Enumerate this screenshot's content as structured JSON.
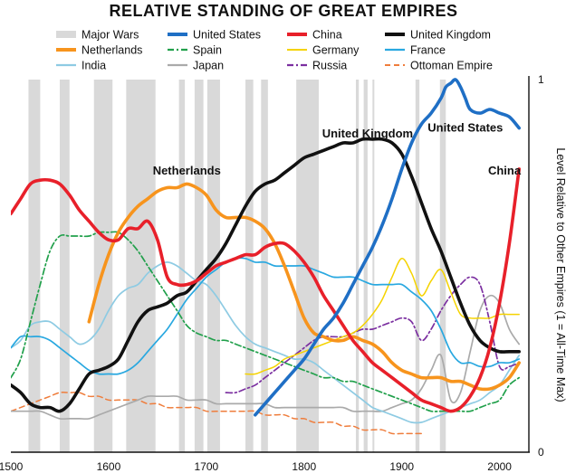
{
  "chart_data": {
    "type": "line",
    "title": "RELATIVE STANDING OF GREAT EMPIRES",
    "ylabel": "Level Relative to Other Empires (1 = All-Time Max)",
    "xlim": [
      1500,
      2030
    ],
    "ylim": [
      0,
      1
    ],
    "x_ticks": [
      "1500",
      "1600",
      "1700",
      "1800",
      "1900",
      "2000"
    ],
    "y_ticks": [
      "0",
      "1"
    ],
    "legend_placement": "top",
    "legend": [
      "Major Wars",
      "United States",
      "China",
      "United Kingdom",
      "Netherlands",
      "Spain",
      "Germany",
      "France",
      "India",
      "Japan",
      "Russia",
      "Ottoman Empire"
    ],
    "major_wars_label": "Major Wars",
    "major_wars_color": "#d9d9d9",
    "major_wars": [
      [
        1518,
        1530
      ],
      [
        1550,
        1560
      ],
      [
        1585,
        1604
      ],
      [
        1618,
        1648
      ],
      [
        1672,
        1678
      ],
      [
        1688,
        1697
      ],
      [
        1701,
        1714
      ],
      [
        1740,
        1748
      ],
      [
        1756,
        1763
      ],
      [
        1792,
        1815
      ],
      [
        1853,
        1856
      ],
      [
        1861,
        1865
      ],
      [
        1870,
        1871
      ],
      [
        1914,
        1918
      ],
      [
        1939,
        1945
      ]
    ],
    "annotations": [
      {
        "text": "Netherlands",
        "x": 1680,
        "y": 0.745
      },
      {
        "text": "United Kingdom",
        "x": 1865,
        "y": 0.845
      },
      {
        "text": "United States",
        "x": 1965,
        "y": 0.86
      },
      {
        "text": "China",
        "x": 2005,
        "y": 0.745
      }
    ],
    "series": [
      {
        "name": "United States",
        "color": "#1f6fc5",
        "width": 3.6,
        "dash": "",
        "x": [
          1750,
          1760,
          1770,
          1780,
          1790,
          1800,
          1810,
          1820,
          1830,
          1840,
          1850,
          1860,
          1870,
          1880,
          1890,
          1900,
          1910,
          1920,
          1930,
          1940,
          1945,
          1950,
          1955,
          1960,
          1965,
          1970,
          1980,
          1990,
          2000,
          2010,
          2020
        ],
        "y": [
          0.1,
          0.13,
          0.16,
          0.19,
          0.22,
          0.25,
          0.29,
          0.33,
          0.36,
          0.4,
          0.45,
          0.5,
          0.55,
          0.61,
          0.68,
          0.76,
          0.83,
          0.88,
          0.91,
          0.95,
          0.98,
          0.99,
          1.0,
          0.98,
          0.95,
          0.92,
          0.91,
          0.92,
          0.91,
          0.9,
          0.87
        ]
      },
      {
        "name": "China",
        "color": "#e8202a",
        "width": 3.6,
        "dash": "",
        "x": [
          1500,
          1510,
          1520,
          1530,
          1540,
          1550,
          1560,
          1570,
          1580,
          1590,
          1600,
          1610,
          1620,
          1630,
          1640,
          1650,
          1660,
          1670,
          1680,
          1690,
          1700,
          1710,
          1720,
          1730,
          1740,
          1750,
          1760,
          1770,
          1780,
          1790,
          1800,
          1810,
          1820,
          1830,
          1840,
          1850,
          1860,
          1870,
          1880,
          1890,
          1900,
          1910,
          1920,
          1930,
          1940,
          1950,
          1960,
          1970,
          1980,
          1990,
          2000,
          2010,
          2020
        ],
        "y": [
          0.64,
          0.68,
          0.72,
          0.73,
          0.73,
          0.72,
          0.69,
          0.65,
          0.62,
          0.59,
          0.57,
          0.57,
          0.6,
          0.6,
          0.62,
          0.57,
          0.47,
          0.45,
          0.45,
          0.46,
          0.48,
          0.5,
          0.51,
          0.52,
          0.53,
          0.53,
          0.55,
          0.56,
          0.56,
          0.54,
          0.51,
          0.47,
          0.42,
          0.38,
          0.34,
          0.3,
          0.27,
          0.24,
          0.22,
          0.2,
          0.18,
          0.16,
          0.14,
          0.13,
          0.12,
          0.11,
          0.12,
          0.15,
          0.2,
          0.28,
          0.4,
          0.56,
          0.76
        ]
      },
      {
        "name": "United Kingdom",
        "color": "#111111",
        "width": 3.6,
        "dash": "",
        "x": [
          1500,
          1510,
          1520,
          1530,
          1540,
          1550,
          1560,
          1570,
          1580,
          1590,
          1600,
          1610,
          1620,
          1630,
          1640,
          1650,
          1660,
          1670,
          1680,
          1690,
          1700,
          1710,
          1720,
          1730,
          1740,
          1750,
          1760,
          1770,
          1780,
          1790,
          1800,
          1810,
          1820,
          1830,
          1840,
          1850,
          1860,
          1870,
          1880,
          1890,
          1900,
          1910,
          1920,
          1930,
          1940,
          1950,
          1960,
          1970,
          1980,
          1990,
          2000,
          2010,
          2020
        ],
        "y": [
          0.18,
          0.16,
          0.13,
          0.12,
          0.12,
          0.11,
          0.13,
          0.17,
          0.21,
          0.22,
          0.23,
          0.25,
          0.3,
          0.35,
          0.38,
          0.39,
          0.4,
          0.42,
          0.43,
          0.46,
          0.49,
          0.52,
          0.56,
          0.61,
          0.66,
          0.7,
          0.72,
          0.73,
          0.75,
          0.77,
          0.79,
          0.8,
          0.81,
          0.82,
          0.83,
          0.83,
          0.84,
          0.84,
          0.84,
          0.83,
          0.8,
          0.74,
          0.67,
          0.6,
          0.54,
          0.47,
          0.4,
          0.34,
          0.3,
          0.28,
          0.27,
          0.27,
          0.27
        ]
      },
      {
        "name": "Netherlands",
        "color": "#f7941d",
        "width": 3.6,
        "dash": "",
        "x": [
          1580,
          1590,
          1600,
          1610,
          1620,
          1630,
          1640,
          1650,
          1660,
          1670,
          1680,
          1690,
          1700,
          1710,
          1720,
          1730,
          1740,
          1750,
          1760,
          1770,
          1780,
          1790,
          1800,
          1810,
          1820,
          1830,
          1840,
          1850,
          1860,
          1870,
          1880,
          1890,
          1900,
          1910,
          1920,
          1930,
          1940,
          1950,
          1960,
          1970,
          1980,
          1990,
          2000,
          2010,
          2020
        ],
        "y": [
          0.35,
          0.45,
          0.53,
          0.59,
          0.63,
          0.66,
          0.68,
          0.7,
          0.71,
          0.71,
          0.72,
          0.71,
          0.69,
          0.65,
          0.63,
          0.63,
          0.63,
          0.62,
          0.6,
          0.56,
          0.5,
          0.43,
          0.36,
          0.32,
          0.31,
          0.3,
          0.3,
          0.31,
          0.3,
          0.29,
          0.27,
          0.24,
          0.22,
          0.21,
          0.2,
          0.2,
          0.2,
          0.19,
          0.19,
          0.18,
          0.17,
          0.17,
          0.18,
          0.2,
          0.24
        ]
      },
      {
        "name": "Spain",
        "color": "#21a04b",
        "width": 1.7,
        "dash": "7,3,2,3",
        "x": [
          1500,
          1510,
          1520,
          1530,
          1540,
          1550,
          1560,
          1570,
          1580,
          1590,
          1600,
          1610,
          1620,
          1630,
          1640,
          1650,
          1660,
          1670,
          1680,
          1690,
          1700,
          1710,
          1720,
          1730,
          1740,
          1750,
          1760,
          1770,
          1780,
          1790,
          1800,
          1810,
          1820,
          1830,
          1840,
          1850,
          1860,
          1870,
          1880,
          1890,
          1900,
          1910,
          1920,
          1930,
          1940,
          1950,
          1960,
          1970,
          1980,
          1990,
          2000,
          2010,
          2020
        ],
        "y": [
          0.2,
          0.25,
          0.35,
          0.45,
          0.54,
          0.58,
          0.58,
          0.58,
          0.58,
          0.59,
          0.59,
          0.59,
          0.57,
          0.54,
          0.5,
          0.46,
          0.42,
          0.38,
          0.34,
          0.32,
          0.31,
          0.3,
          0.3,
          0.29,
          0.28,
          0.27,
          0.26,
          0.25,
          0.24,
          0.23,
          0.22,
          0.21,
          0.2,
          0.2,
          0.19,
          0.19,
          0.18,
          0.17,
          0.16,
          0.15,
          0.14,
          0.13,
          0.12,
          0.11,
          0.11,
          0.11,
          0.11,
          0.11,
          0.12,
          0.13,
          0.14,
          0.18,
          0.2
        ]
      },
      {
        "name": "Germany",
        "color": "#f5d300",
        "width": 1.5,
        "dash": "",
        "x": [
          1740,
          1750,
          1760,
          1770,
          1780,
          1790,
          1800,
          1810,
          1820,
          1830,
          1840,
          1850,
          1860,
          1870,
          1880,
          1890,
          1900,
          1910,
          1920,
          1930,
          1940,
          1950,
          1960,
          1970,
          1980,
          1990,
          2000,
          2010,
          2020
        ],
        "y": [
          0.21,
          0.21,
          0.22,
          0.23,
          0.25,
          0.26,
          0.27,
          0.28,
          0.29,
          0.3,
          0.31,
          0.32,
          0.34,
          0.37,
          0.41,
          0.47,
          0.52,
          0.48,
          0.42,
          0.46,
          0.49,
          0.43,
          0.37,
          0.36,
          0.36,
          0.36,
          0.37,
          0.37,
          0.37
        ]
      },
      {
        "name": "France",
        "color": "#29a8e0",
        "width": 1.7,
        "dash": "",
        "x": [
          1500,
          1510,
          1520,
          1530,
          1540,
          1550,
          1560,
          1570,
          1580,
          1590,
          1600,
          1610,
          1620,
          1630,
          1640,
          1650,
          1660,
          1670,
          1680,
          1690,
          1700,
          1710,
          1720,
          1730,
          1740,
          1750,
          1760,
          1770,
          1780,
          1790,
          1800,
          1810,
          1820,
          1830,
          1840,
          1850,
          1860,
          1870,
          1880,
          1890,
          1900,
          1910,
          1920,
          1930,
          1940,
          1950,
          1960,
          1970,
          1980,
          1990,
          2000,
          2010,
          2020
        ],
        "y": [
          0.28,
          0.31,
          0.31,
          0.31,
          0.3,
          0.28,
          0.26,
          0.24,
          0.22,
          0.21,
          0.21,
          0.21,
          0.22,
          0.24,
          0.27,
          0.3,
          0.33,
          0.37,
          0.41,
          0.44,
          0.47,
          0.49,
          0.51,
          0.52,
          0.52,
          0.51,
          0.51,
          0.5,
          0.5,
          0.5,
          0.5,
          0.49,
          0.48,
          0.47,
          0.47,
          0.47,
          0.46,
          0.45,
          0.45,
          0.45,
          0.45,
          0.43,
          0.41,
          0.38,
          0.33,
          0.27,
          0.24,
          0.24,
          0.23,
          0.23,
          0.24,
          0.24,
          0.25
        ]
      },
      {
        "name": "India",
        "color": "#8ecbe3",
        "width": 1.7,
        "dash": "",
        "x": [
          1500,
          1510,
          1520,
          1530,
          1540,
          1550,
          1560,
          1570,
          1580,
          1590,
          1600,
          1610,
          1620,
          1630,
          1640,
          1650,
          1660,
          1670,
          1680,
          1690,
          1700,
          1710,
          1720,
          1730,
          1740,
          1750,
          1760,
          1770,
          1780,
          1790,
          1800,
          1810,
          1820,
          1830,
          1840,
          1850,
          1860,
          1870,
          1880,
          1890,
          1900,
          1910,
          1920,
          1930,
          1940,
          1950,
          1960,
          1970,
          1980,
          1990,
          2000,
          2010,
          2020
        ],
        "y": [
          0.28,
          0.3,
          0.34,
          0.35,
          0.35,
          0.33,
          0.31,
          0.29,
          0.3,
          0.33,
          0.38,
          0.42,
          0.44,
          0.45,
          0.48,
          0.5,
          0.51,
          0.5,
          0.48,
          0.46,
          0.45,
          0.42,
          0.38,
          0.34,
          0.31,
          0.29,
          0.28,
          0.27,
          0.26,
          0.25,
          0.25,
          0.24,
          0.22,
          0.2,
          0.18,
          0.16,
          0.14,
          0.12,
          0.11,
          0.1,
          0.09,
          0.08,
          0.08,
          0.09,
          0.1,
          0.11,
          0.12,
          0.13,
          0.14,
          0.16,
          0.18,
          0.22,
          0.26
        ]
      },
      {
        "name": "Japan",
        "color": "#aaaaaa",
        "width": 1.7,
        "dash": "",
        "x": [
          1500,
          1510,
          1520,
          1530,
          1540,
          1550,
          1560,
          1570,
          1580,
          1590,
          1600,
          1610,
          1620,
          1630,
          1640,
          1650,
          1660,
          1670,
          1680,
          1690,
          1700,
          1710,
          1720,
          1730,
          1740,
          1750,
          1760,
          1770,
          1780,
          1790,
          1800,
          1810,
          1820,
          1830,
          1840,
          1850,
          1860,
          1870,
          1880,
          1890,
          1900,
          1910,
          1920,
          1930,
          1940,
          1950,
          1960,
          1970,
          1980,
          1990,
          2000,
          2010,
          2020
        ],
        "y": [
          0.11,
          0.11,
          0.11,
          0.11,
          0.1,
          0.09,
          0.09,
          0.09,
          0.09,
          0.1,
          0.11,
          0.12,
          0.13,
          0.14,
          0.15,
          0.15,
          0.15,
          0.15,
          0.14,
          0.14,
          0.14,
          0.13,
          0.13,
          0.13,
          0.13,
          0.13,
          0.13,
          0.12,
          0.12,
          0.12,
          0.12,
          0.12,
          0.12,
          0.12,
          0.12,
          0.11,
          0.11,
          0.11,
          0.11,
          0.12,
          0.13,
          0.14,
          0.17,
          0.22,
          0.26,
          0.14,
          0.16,
          0.27,
          0.38,
          0.42,
          0.4,
          0.33,
          0.29
        ]
      },
      {
        "name": "Russia",
        "color": "#7b2fa0",
        "width": 1.7,
        "dash": "7,3,2,3",
        "x": [
          1720,
          1730,
          1740,
          1750,
          1760,
          1770,
          1780,
          1790,
          1800,
          1810,
          1820,
          1830,
          1840,
          1850,
          1860,
          1870,
          1880,
          1890,
          1900,
          1910,
          1920,
          1930,
          1940,
          1950,
          1960,
          1970,
          1980,
          1990,
          2000,
          2010,
          2020
        ],
        "y": [
          0.16,
          0.16,
          0.17,
          0.18,
          0.2,
          0.22,
          0.24,
          0.26,
          0.28,
          0.3,
          0.31,
          0.31,
          0.31,
          0.32,
          0.33,
          0.33,
          0.34,
          0.35,
          0.36,
          0.35,
          0.3,
          0.33,
          0.38,
          0.42,
          0.45,
          0.47,
          0.45,
          0.35,
          0.23,
          0.23,
          0.24
        ]
      },
      {
        "name": "Ottoman Empire",
        "color": "#ef7d3c",
        "width": 1.5,
        "dash": "6,4",
        "x": [
          1500,
          1510,
          1520,
          1530,
          1540,
          1550,
          1560,
          1570,
          1580,
          1590,
          1600,
          1610,
          1620,
          1630,
          1640,
          1650,
          1660,
          1670,
          1680,
          1690,
          1700,
          1710,
          1720,
          1730,
          1740,
          1750,
          1760,
          1770,
          1780,
          1790,
          1800,
          1810,
          1820,
          1830,
          1840,
          1850,
          1860,
          1870,
          1880,
          1890,
          1900,
          1910,
          1920
        ],
        "y": [
          0.11,
          0.12,
          0.13,
          0.14,
          0.15,
          0.16,
          0.16,
          0.16,
          0.15,
          0.15,
          0.14,
          0.14,
          0.14,
          0.14,
          0.13,
          0.13,
          0.12,
          0.12,
          0.12,
          0.12,
          0.11,
          0.11,
          0.11,
          0.11,
          0.11,
          0.11,
          0.1,
          0.1,
          0.1,
          0.09,
          0.09,
          0.08,
          0.08,
          0.08,
          0.07,
          0.07,
          0.06,
          0.06,
          0.06,
          0.05,
          0.05,
          0.05,
          0.05
        ]
      }
    ]
  }
}
